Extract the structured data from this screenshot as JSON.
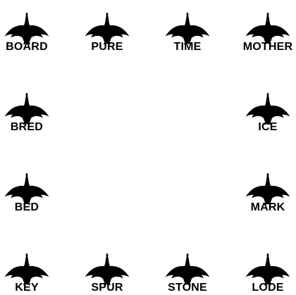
{
  "colors": {
    "silhouette": "#000000",
    "text": "#000000",
    "background": "#ffffff"
  },
  "icon": "goose-silhouette-icon",
  "words": {
    "board": "BOARD",
    "pure": "PURE",
    "time": "TIME",
    "mother": "MOTHER",
    "bred": "BRED",
    "ice": "ICE",
    "bed": "BED",
    "mark": "MARK",
    "key": "KEY",
    "spur": "SPUR",
    "stone": "STONE",
    "lode": "LODE"
  }
}
